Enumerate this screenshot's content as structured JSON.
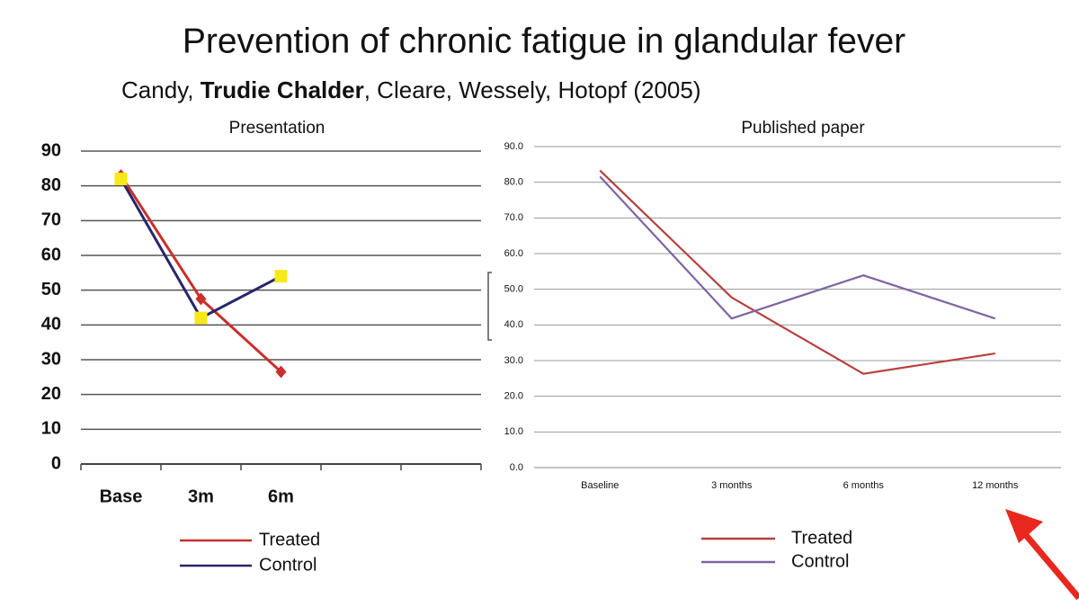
{
  "title": "Prevention of chronic fatigue in glandular fever",
  "subtitle": [
    "Candy, ",
    "Trudie Chalder",
    ", Cleare, Wessely, Hotopf (2005)"
  ],
  "chart_data": [
    {
      "type": "line",
      "title": "Presentation",
      "categories": [
        "Base",
        "3m",
        "6m",
        null,
        null
      ],
      "series": [
        {
          "name": "Treated",
          "color": "#c8302c",
          "marker": "diamond",
          "marker_color": "#c8302c",
          "values": [
            83,
            47.5,
            26.5,
            null,
            null
          ]
        },
        {
          "name": "Control",
          "color": "#26266a",
          "marker": "square",
          "marker_color": "#f7e818",
          "values": [
            82,
            42,
            54,
            null,
            null
          ]
        }
      ],
      "ylim": [
        0,
        90
      ],
      "yticks": [
        0,
        10,
        20,
        30,
        40,
        50,
        60,
        70,
        80,
        90
      ],
      "grid": true,
      "legend": "bottom"
    },
    {
      "type": "line",
      "title": "Published paper",
      "categories": [
        "Baseline",
        "3 months",
        "6 months",
        "12 months"
      ],
      "series": [
        {
          "name": "Treated",
          "color": "#b5413f",
          "values": [
            83.3,
            47.7,
            26.3,
            32
          ]
        },
        {
          "name": "Control",
          "color": "#8064a2",
          "values": [
            81.6,
            41.8,
            53.9,
            41.8
          ]
        }
      ],
      "ylim": [
        0,
        90
      ],
      "yticks": [
        {
          "value": 0,
          "label": "0.0"
        },
        {
          "value": 10,
          "label": "10.0"
        },
        {
          "value": 20,
          "label": "20.0"
        },
        {
          "value": 30,
          "label": "30.0"
        },
        {
          "value": 40,
          "label": "40.0"
        },
        {
          "value": 50,
          "label": "50.0"
        },
        {
          "value": 60,
          "label": "60.0"
        },
        {
          "value": 70,
          "label": "70.0"
        },
        {
          "value": 80,
          "label": "80.0"
        },
        {
          "value": 90,
          "label": "90.0"
        }
      ],
      "grid": true,
      "legend": "bottom"
    }
  ]
}
